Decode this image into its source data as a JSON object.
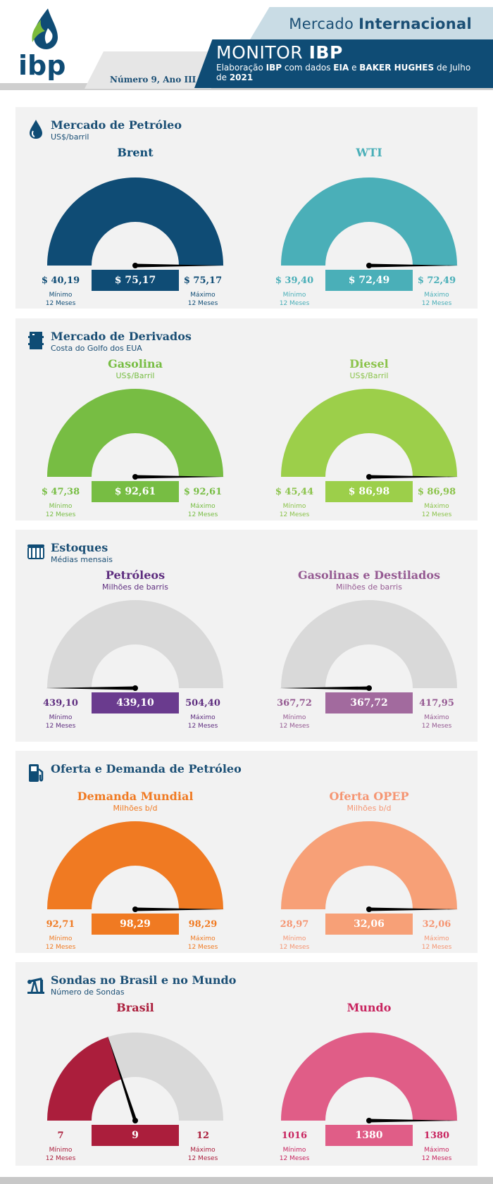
{
  "header": {
    "section_regular": "Mercado",
    "section_bold": "Internacional",
    "issue": "Número 9, Ano III",
    "title_regular": "MONITOR",
    "title_bold": "IBP",
    "subtitle": [
      "Elaboração ",
      "IBP",
      " com dados ",
      "EIA",
      " e ",
      "BAKER HUGHES",
      " de Julho de ",
      "2021"
    ],
    "logo_text": "ibp",
    "colors": {
      "navy": "#0f4c75",
      "light": "#c9dce5"
    }
  },
  "sections": [
    {
      "title": "Mercado de Petróleo",
      "subtitle": "US$/barril",
      "icon": "oil-drop-icon",
      "gauges": [
        {
          "title": "Brent",
          "unit": "",
          "value": "$ 75,17",
          "min": "$ 40,19",
          "max": "$ 75,17",
          "min_caption": [
            "Mínimo",
            "12 Meses"
          ],
          "max_caption": [
            "Máximo",
            "12 Meses"
          ],
          "fill_fraction": 1.0,
          "color": "#0f4c75",
          "label_color": "#0f4c75",
          "caption_color": "#0f4c75"
        },
        {
          "title": "WTI",
          "unit": "",
          "value": "$ 72,49",
          "min": "$ 39,40",
          "max": "$ 72,49",
          "min_caption": [
            "Mínimo",
            "12 Meses"
          ],
          "max_caption": [
            "Máximo",
            "12 Meses"
          ],
          "fill_fraction": 1.0,
          "color": "#4aafb8",
          "label_color": "#4aafb8",
          "caption_color": "#4aafb8"
        }
      ]
    },
    {
      "title": "Mercado de Derivados",
      "subtitle": "Costa do Golfo dos EUA",
      "icon": "barrel-icon",
      "gauges": [
        {
          "title": "Gasolina",
          "unit": "US$/Barril",
          "value": "$ 92,61",
          "min": "$ 47,38",
          "max": "$ 92,61",
          "min_caption": [
            "Mínimo",
            "12 Meses"
          ],
          "max_caption": [
            "Máximo",
            "12 Meses"
          ],
          "fill_fraction": 1.0,
          "color": "#77bd43",
          "label_color": "#77bd43",
          "caption_color": "#77bd43"
        },
        {
          "title": "Diesel",
          "unit": "US$/Barril",
          "value": "$ 86,98",
          "min": "$ 45,44",
          "max": "$ 86,98",
          "min_caption": [
            "Mínimo",
            "12 Meses"
          ],
          "max_caption": [
            "Máximo",
            "12 Meses"
          ],
          "fill_fraction": 1.0,
          "color": "#9ccf4a",
          "label_color": "#8bc34a",
          "caption_color": "#8bc34a"
        }
      ]
    },
    {
      "title": "Estoques",
      "subtitle": "Médias mensais",
      "icon": "tank-icon",
      "gauges": [
        {
          "title": "Petróleos",
          "unit": "Milhões de barris",
          "value": "439,10",
          "min": "439,10",
          "max": "504,40",
          "min_caption": [
            "Mínimo",
            "12 Meses"
          ],
          "max_caption": [
            "Máximo",
            "12 Meses"
          ],
          "fill_fraction": 0.0,
          "color": "#6a3b8e",
          "label_color": "#5e2d7f",
          "caption_color": "#5e2d7f"
        },
        {
          "title": "Gasolinas  e Destilados",
          "unit": "Milhões de barris",
          "value": "367,72",
          "min": "367,72",
          "max": "417,95",
          "min_caption": [
            "Mínimo",
            "12 Meses"
          ],
          "max_caption": [
            "Máximo",
            "12 Meses"
          ],
          "fill_fraction": 0.0,
          "color": "#a26a9e",
          "label_color": "#955a92",
          "caption_color": "#955a92"
        }
      ]
    },
    {
      "title": "Oferta e Demanda de Petróleo",
      "subtitle": "",
      "icon": "fuel-pump-icon",
      "gauges": [
        {
          "title": "Demanda Mundial",
          "unit": "Milhões b/d",
          "value": "98,29",
          "min": "92,71",
          "max": "98,29",
          "min_caption": [
            "Mínimo",
            "12 Meses"
          ],
          "max_caption": [
            "Máximo",
            "12 Meses"
          ],
          "fill_fraction": 1.0,
          "color": "#f07a22",
          "label_color": "#f07a22",
          "caption_color": "#f07a22"
        },
        {
          "title": "Oferta OPEP",
          "unit": "Milhões b/d",
          "value": "32,06",
          "min": "28,97",
          "max": "32,06",
          "min_caption": [
            "Mínimo",
            "12 Meses"
          ],
          "max_caption": [
            "Máximo",
            "12 Meses"
          ],
          "fill_fraction": 1.0,
          "color": "#f7a077",
          "label_color": "#f59572",
          "caption_color": "#f59572"
        }
      ]
    },
    {
      "title": "Sondas no Brasil e no Mundo",
      "subtitle": "Número de Sondas",
      "icon": "pumpjack-icon",
      "gauges": [
        {
          "title": "Brasil",
          "unit": "",
          "value": "9",
          "min": "7",
          "max": "12",
          "min_caption": [
            "Mínimo",
            "12 Meses"
          ],
          "max_caption": [
            "Máximo",
            "12 Meses"
          ],
          "fill_fraction": 0.4,
          "color": "#ab1e3c",
          "label_color": "#ab1e3c",
          "caption_color": "#ab1e3c"
        },
        {
          "title": "Mundo",
          "unit": "",
          "value": "1380",
          "min": "1016",
          "max": "1380",
          "min_caption": [
            "Mínimo",
            "12 Meses"
          ],
          "max_caption": [
            "Máximo",
            "12 Meses"
          ],
          "fill_fraction": 1.0,
          "color": "#e05d87",
          "label_color": "#c8245f",
          "caption_color": "#c8245f"
        }
      ]
    }
  ],
  "chart_data": [
    {
      "type": "gauge",
      "title": "Brent",
      "value": 75.17,
      "min": 40.19,
      "max": 75.17
    },
    {
      "type": "gauge",
      "title": "WTI",
      "value": 72.49,
      "min": 39.4,
      "max": 72.49
    },
    {
      "type": "gauge",
      "title": "Gasolina",
      "value": 92.61,
      "min": 47.38,
      "max": 92.61
    },
    {
      "type": "gauge",
      "title": "Diesel",
      "value": 86.98,
      "min": 45.44,
      "max": 86.98
    },
    {
      "type": "gauge",
      "title": "Petróleos",
      "value": 439.1,
      "min": 439.1,
      "max": 504.4
    },
    {
      "type": "gauge",
      "title": "Gasolinas  e Destilados",
      "value": 367.72,
      "min": 367.72,
      "max": 417.95
    },
    {
      "type": "gauge",
      "title": "Demanda Mundial",
      "value": 98.29,
      "min": 92.71,
      "max": 98.29
    },
    {
      "type": "gauge",
      "title": "Oferta OPEP",
      "value": 32.06,
      "min": 28.97,
      "max": 32.06
    },
    {
      "type": "gauge",
      "title": "Brasil",
      "value": 9,
      "min": 7,
      "max": 12
    },
    {
      "type": "gauge",
      "title": "Mundo",
      "value": 1380,
      "min": 1016,
      "max": 1380
    }
  ]
}
